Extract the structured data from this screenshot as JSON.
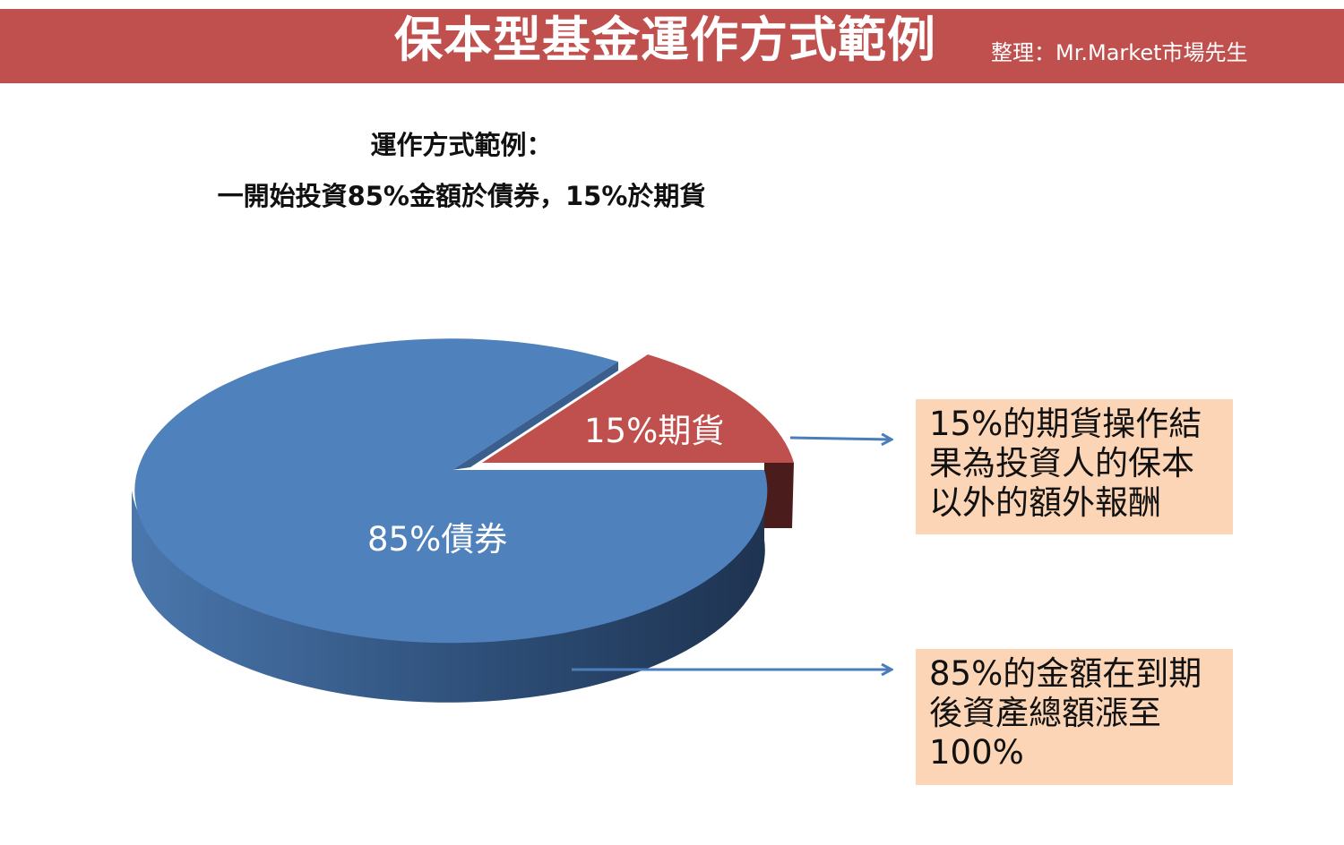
{
  "header": {
    "title": "保本型基金運作方式範例",
    "credit": "整理：Mr.Market市場先生"
  },
  "subtitle": {
    "line1": "運作方式範例：",
    "line2": "一開始投資85%金額於債券，15%於期貨"
  },
  "chart_data": {
    "type": "pie",
    "title": "",
    "slices": [
      {
        "label": "85%債券",
        "value": 85,
        "color": "#4f81bd"
      },
      {
        "label": "15%期貨",
        "value": 15,
        "color": "#c0504d"
      }
    ],
    "style": "3d-exploded"
  },
  "notes": {
    "futures": "15%的期貨操作結\n果為投資人的保本\n以外的額外報酬",
    "bonds": "85%的金額在到期\n後資產總額漲至\n100%"
  },
  "colors": {
    "header_bg": "#c0504d",
    "bond_slice": "#4f81bd",
    "futures_slice": "#c0504d",
    "note_bg": "#fbd5b5",
    "arrow": "#4a7ebb"
  }
}
